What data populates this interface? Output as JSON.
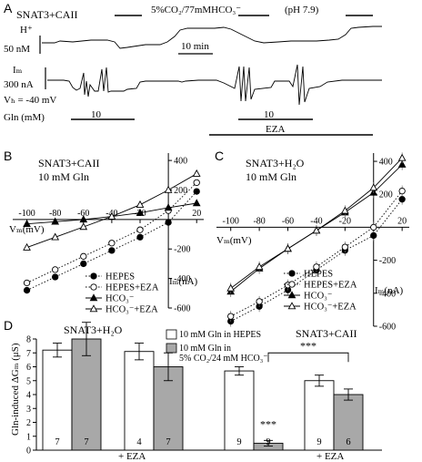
{
  "panel_a": {
    "letter": "A",
    "title": "SNAT3+CAII",
    "co2_label": "5%CO₂/77mMHCO₃⁻",
    "ph_label": "(pH 7.9)",
    "h_label": "H⁺",
    "h_scale": "50 nM",
    "time_scale": "10 min",
    "im_label": "Iₘ",
    "im_scale": "300 nA",
    "vh_label": "Vₕ = -40 mV",
    "gln_label": "Gln (mM)",
    "gln_value_1": "10",
    "gln_value_2": "10",
    "eza_label": "EZA"
  },
  "panel_d": {
    "letter": "D",
    "title_left": "SNAT3+H₂O",
    "title_right": "SNAT3+CAII",
    "legend_hepes": "10 mM Gln in HEPES",
    "legend_co2_1": "10 mM Gln in",
    "legend_co2_2": "5% CO₂/24 mM HCO₃⁻",
    "eza_label": "+ EZA",
    "signif_in_bar": "***",
    "signif_bracket": "***",
    "yticks": [
      "0",
      "1",
      "2",
      "3",
      "4",
      "5",
      "6",
      "7",
      "8"
    ]
  },
  "chart_data": [
    {
      "panel": "B",
      "type": "line",
      "title": "SNAT3+CAII",
      "subtitle": "10 mM Gln",
      "xlabel": "Vₘ(mV)",
      "ylabel": "Iₘ(nA)",
      "xlim": [
        -110,
        25
      ],
      "ylim": [
        -600,
        450
      ],
      "xticks": [
        -100,
        -80,
        -60,
        -40,
        -20,
        20
      ],
      "yticks": [
        -600,
        -400,
        -200,
        200,
        400
      ],
      "x": [
        -100,
        -80,
        -60,
        -40,
        -20,
        0,
        20
      ],
      "legend_position": "bottom-right",
      "series": [
        {
          "name": "HEPES",
          "marker": "filled-circle",
          "line": "dotted",
          "values": [
            -480,
            -390,
            -300,
            -210,
            -120,
            -20,
            190
          ]
        },
        {
          "name": "HEPES+EZA",
          "marker": "open-circle",
          "line": "dotted",
          "values": [
            -430,
            -340,
            -250,
            -160,
            -70,
            60,
            250
          ]
        },
        {
          "name": "HCO₃⁻",
          "marker": "filled-triangle",
          "line": "solid",
          "values": [
            -30,
            -15,
            0,
            20,
            45,
            80,
            110
          ]
        },
        {
          "name": "HCO₃⁻+EZA",
          "marker": "open-triangle",
          "line": "solid",
          "values": [
            -190,
            -120,
            -50,
            20,
            100,
            200,
            310
          ]
        }
      ]
    },
    {
      "panel": "C",
      "type": "line",
      "title": "SNAT3+H₂O",
      "subtitle": "10 mM Gln",
      "xlabel": "Vₘ(mV)",
      "ylabel": "Iₘ(nA)",
      "xlim": [
        -110,
        25
      ],
      "ylim": [
        -600,
        450
      ],
      "xticks": [
        -100,
        -80,
        -60,
        -40,
        -20,
        20
      ],
      "yticks": [
        -600,
        -400,
        -200,
        200,
        400
      ],
      "x": [
        -100,
        -80,
        -60,
        -40,
        -20,
        0,
        20
      ],
      "legend_position": "bottom-right",
      "series": [
        {
          "name": "HEPES",
          "marker": "filled-circle",
          "line": "dotted",
          "values": [
            -570,
            -480,
            -380,
            -260,
            -140,
            -50,
            170
          ]
        },
        {
          "name": "HEPES+EZA",
          "marker": "open-circle",
          "line": "dotted",
          "values": [
            -540,
            -450,
            -350,
            -240,
            -120,
            0,
            220
          ]
        },
        {
          "name": "HCO₃⁻",
          "marker": "filled-triangle",
          "line": "solid",
          "values": [
            -390,
            -250,
            -130,
            -20,
            90,
            210,
            380
          ]
        },
        {
          "name": "HCO₃⁻+EZA",
          "marker": "open-triangle",
          "line": "solid",
          "values": [
            -370,
            -240,
            -130,
            -20,
            100,
            240,
            420
          ]
        }
      ]
    },
    {
      "panel": "D",
      "type": "bar",
      "ylabel": "Gln-induced ΔGₘ (μS)",
      "ylim": [
        0,
        8
      ],
      "categories": [
        "SNAT3+H₂O",
        "SNAT3+H₂O + EZA",
        "SNAT3+CAII",
        "SNAT3+CAII + EZA"
      ],
      "series": [
        {
          "name": "10 mM Gln in HEPES",
          "color": "#ffffff",
          "values": [
            7.2,
            7.1,
            5.7,
            5.0
          ],
          "errors": [
            0.5,
            0.6,
            0.3,
            0.4
          ],
          "n": [
            "7",
            "4",
            "9",
            "9"
          ]
        },
        {
          "name": "10 mM Gln in 5% CO₂/24 mM HCO₃⁻",
          "color": "#a8a8a8",
          "values": [
            8.0,
            6.0,
            0.5,
            4.0
          ],
          "errors": [
            1.2,
            1.0,
            0.2,
            0.4
          ],
          "n": [
            "7",
            "7",
            "9",
            "6"
          ]
        }
      ]
    }
  ]
}
